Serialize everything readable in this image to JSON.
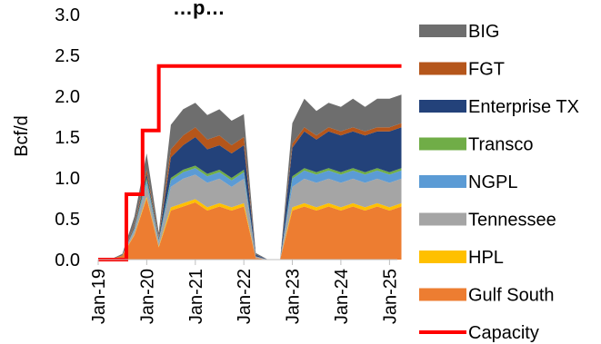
{
  "chart_data": {
    "type": "area",
    "title": "…p…",
    "ylabel": "Bcf/d",
    "ylim": [
      0,
      3.0
    ],
    "yticks": [
      0.0,
      0.5,
      1.0,
      1.5,
      2.0,
      2.5,
      3.0
    ],
    "ytick_labels": [
      "0.0",
      "0.5",
      "1.0",
      "1.5",
      "2.0",
      "2.5",
      "3.0"
    ],
    "x": [
      "2019-01",
      "2019-04",
      "2019-07",
      "2019-10",
      "2020-01",
      "2020-04",
      "2020-07",
      "2020-10",
      "2021-01",
      "2021-04",
      "2021-07",
      "2021-10",
      "2022-01",
      "2022-04",
      "2022-07",
      "2022-10",
      "2023-01",
      "2023-04",
      "2023-07",
      "2023-10",
      "2024-01",
      "2024-04",
      "2024-07",
      "2024-10",
      "2025-01",
      "2025-04"
    ],
    "xtick_labels": [
      "Jan-19",
      "Jan-20",
      "Jan-21",
      "Jan-22",
      "Jan-23",
      "Jan-24",
      "Jan-25"
    ],
    "stack_order": "bottom-to-top: Gulf South, HPL, Tennessee, NGPL, Transco, Enterprise TX, FGT, BIG",
    "series": [
      {
        "name": "BIG",
        "color": "#6e6e6e",
        "values": [
          0,
          0,
          0.02,
          0.1,
          0.2,
          0.05,
          0.3,
          0.32,
          0.3,
          0.3,
          0.32,
          0.3,
          0.28,
          0.02,
          0,
          0,
          0.25,
          0.35,
          0.3,
          0.3,
          0.3,
          0.35,
          0.3,
          0.35,
          0.35,
          0.35
        ]
      },
      {
        "name": "FGT",
        "color": "#b5561b",
        "values": [
          0,
          0,
          0,
          0.02,
          0.05,
          0.02,
          0.1,
          0.12,
          0.12,
          0.12,
          0.12,
          0.1,
          0.1,
          0,
          0,
          0,
          0.05,
          0.05,
          0.05,
          0.05,
          0.05,
          0.05,
          0.05,
          0.05,
          0.05,
          0.05
        ]
      },
      {
        "name": "Enterprise TX",
        "color": "#23427a",
        "values": [
          0,
          0,
          0,
          0.02,
          0.05,
          0.02,
          0.25,
          0.3,
          0.35,
          0.3,
          0.3,
          0.3,
          0.3,
          0.02,
          0,
          0,
          0.35,
          0.45,
          0.4,
          0.45,
          0.45,
          0.45,
          0.45,
          0.45,
          0.5,
          0.5
        ]
      },
      {
        "name": "Transco",
        "color": "#70ad47",
        "values": [
          0,
          0,
          0,
          0.01,
          0.03,
          0.01,
          0.03,
          0.03,
          0.03,
          0.03,
          0.03,
          0.03,
          0.03,
          0,
          0,
          0,
          0.03,
          0.03,
          0.03,
          0.03,
          0.03,
          0.03,
          0.03,
          0.03,
          0.03,
          0.03
        ]
      },
      {
        "name": "NGPL",
        "color": "#5b9bd5",
        "values": [
          0,
          0,
          0,
          0.02,
          0.05,
          0.02,
          0.08,
          0.08,
          0.08,
          0.08,
          0.08,
          0.08,
          0.08,
          0,
          0,
          0,
          0.1,
          0.1,
          0.1,
          0.1,
          0.1,
          0.1,
          0.1,
          0.1,
          0.1,
          0.1
        ]
      },
      {
        "name": "Tennessee",
        "color": "#a5a5a5",
        "values": [
          0,
          0,
          0,
          0.05,
          0.15,
          0.05,
          0.25,
          0.3,
          0.3,
          0.3,
          0.3,
          0.25,
          0.3,
          0.02,
          0,
          0,
          0.25,
          0.3,
          0.3,
          0.3,
          0.3,
          0.3,
          0.3,
          0.3,
          0.3,
          0.3
        ]
      },
      {
        "name": "HPL",
        "color": "#ffc000",
        "values": [
          0,
          0,
          0,
          0.01,
          0.02,
          0.01,
          0.04,
          0.04,
          0.04,
          0.04,
          0.04,
          0.04,
          0.04,
          0,
          0,
          0,
          0.04,
          0.04,
          0.04,
          0.04,
          0.04,
          0.04,
          0.04,
          0.04,
          0.04,
          0.04
        ]
      },
      {
        "name": "Gulf South",
        "color": "#ed7d31",
        "values": [
          0,
          0,
          0.05,
          0.3,
          0.75,
          0.15,
          0.6,
          0.65,
          0.7,
          0.6,
          0.65,
          0.6,
          0.65,
          0.02,
          0,
          0,
          0.6,
          0.65,
          0.6,
          0.65,
          0.6,
          0.65,
          0.6,
          0.65,
          0.6,
          0.65
        ]
      }
    ],
    "capacity": {
      "name": "Capacity",
      "color": "#ff0000",
      "steps": [
        {
          "x": "2019-01",
          "y": 0.0
        },
        {
          "x": "2019-08",
          "y": 0.8
        },
        {
          "x": "2019-12",
          "y": 1.58
        },
        {
          "x": "2020-04",
          "y": 2.37
        },
        {
          "x": "2025-04",
          "y": 2.37
        }
      ]
    },
    "legend": {
      "position": "right",
      "entries": [
        "BIG",
        "FGT",
        "Enterprise TX",
        "Transco",
        "NGPL",
        "Tennessee",
        "HPL",
        "Gulf South",
        "Capacity"
      ]
    },
    "grid": false
  }
}
